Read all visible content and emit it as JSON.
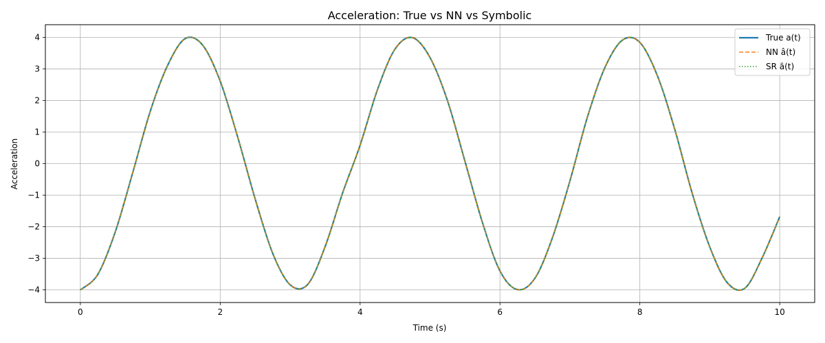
{
  "chart_data": {
    "type": "line",
    "title": "Acceleration: True vs NN vs Symbolic",
    "xlabel": "Time (s)",
    "ylabel": "Acceleration",
    "xlim": [
      -0.5,
      10.5
    ],
    "ylim": [
      -4.4,
      4.4
    ],
    "xticks": [
      0,
      2,
      4,
      6,
      8,
      10
    ],
    "xtick_labels": [
      "0",
      "2",
      "4",
      "6",
      "8",
      "10"
    ],
    "yticks": [
      -4,
      -3,
      -2,
      -1,
      0,
      1,
      2,
      3,
      4
    ],
    "ytick_labels": [
      "−4",
      "−3",
      "−2",
      "−1",
      "0",
      "1",
      "2",
      "3",
      "4"
    ],
    "grid": true,
    "legend_position": "top-right",
    "series": [
      {
        "name": "True a(t)",
        "color": "#1f77b4",
        "style": "solid",
        "x": [
          0,
          0.25,
          0.5,
          0.75,
          1.0,
          1.25,
          1.5,
          1.75,
          2.0,
          2.25,
          2.5,
          2.75,
          3.0,
          3.25,
          3.5,
          3.75,
          4.0,
          4.25,
          4.5,
          4.75,
          5.0,
          5.25,
          5.5,
          5.75,
          6.0,
          6.25,
          6.5,
          6.75,
          7.0,
          7.25,
          7.5,
          7.75,
          8.0,
          8.25,
          8.5,
          8.75,
          9.0,
          9.25,
          9.5,
          9.75,
          10.0
        ],
        "y": [
          -4.0,
          -3.51,
          -2.16,
          -0.28,
          1.66,
          3.12,
          3.96,
          3.75,
          2.61,
          0.84,
          -1.12,
          -2.84,
          -3.84,
          -3.83,
          -2.63,
          -0.93,
          0.58,
          2.35,
          3.63,
          3.99,
          3.36,
          1.99,
          0.07,
          -1.87,
          -3.4,
          -3.99,
          -3.63,
          -2.35,
          -0.55,
          1.47,
          3.04,
          3.91,
          3.84,
          2.79,
          1.08,
          -0.95,
          -2.64,
          -3.77,
          -3.95,
          -2.98,
          -1.68
        ]
      },
      {
        "name": "NN â(t)",
        "color": "#ff7f0e",
        "style": "dashed",
        "x": [
          0,
          0.25,
          0.5,
          0.75,
          1.0,
          1.25,
          1.5,
          1.75,
          2.0,
          2.25,
          2.5,
          2.75,
          3.0,
          3.25,
          3.5,
          3.75,
          4.0,
          4.25,
          4.5,
          4.75,
          5.0,
          5.25,
          5.5,
          5.75,
          6.0,
          6.25,
          6.5,
          6.75,
          7.0,
          7.25,
          7.5,
          7.75,
          8.0,
          8.25,
          8.5,
          8.75,
          9.0,
          9.25,
          9.5,
          9.75,
          10.0
        ],
        "y": [
          -4.0,
          -3.51,
          -2.16,
          -0.28,
          1.66,
          3.12,
          3.96,
          3.75,
          2.61,
          0.84,
          -1.12,
          -2.84,
          -3.84,
          -3.83,
          -2.63,
          -0.93,
          0.58,
          2.35,
          3.63,
          3.99,
          3.36,
          1.99,
          0.07,
          -1.87,
          -3.4,
          -3.99,
          -3.63,
          -2.35,
          -0.55,
          1.47,
          3.04,
          3.91,
          3.84,
          2.79,
          1.08,
          -0.95,
          -2.64,
          -3.77,
          -3.95,
          -2.98,
          -1.68
        ]
      },
      {
        "name": "SR ã(t)",
        "color": "#2ca02c",
        "style": "dotted",
        "x": [
          0,
          0.25,
          0.5,
          0.75,
          1.0,
          1.25,
          1.5,
          1.75,
          2.0,
          2.25,
          2.5,
          2.75,
          3.0,
          3.25,
          3.5,
          3.75,
          4.0,
          4.25,
          4.5,
          4.75,
          5.0,
          5.25,
          5.5,
          5.75,
          6.0,
          6.25,
          6.5,
          6.75,
          7.0,
          7.25,
          7.5,
          7.75,
          8.0,
          8.25,
          8.5,
          8.75,
          9.0,
          9.25,
          9.5,
          9.75,
          10.0
        ],
        "y": [
          -4.0,
          -3.51,
          -2.16,
          -0.28,
          1.66,
          3.12,
          3.96,
          3.75,
          2.61,
          0.84,
          -1.12,
          -2.84,
          -3.84,
          -3.83,
          -2.63,
          -0.93,
          0.58,
          2.35,
          3.63,
          3.99,
          3.36,
          1.99,
          0.07,
          -1.87,
          -3.4,
          -3.99,
          -3.63,
          -2.35,
          -0.55,
          1.47,
          3.04,
          3.91,
          3.84,
          2.79,
          1.08,
          -0.95,
          -2.64,
          -3.77,
          -3.95,
          -2.98,
          -1.68
        ]
      }
    ]
  }
}
